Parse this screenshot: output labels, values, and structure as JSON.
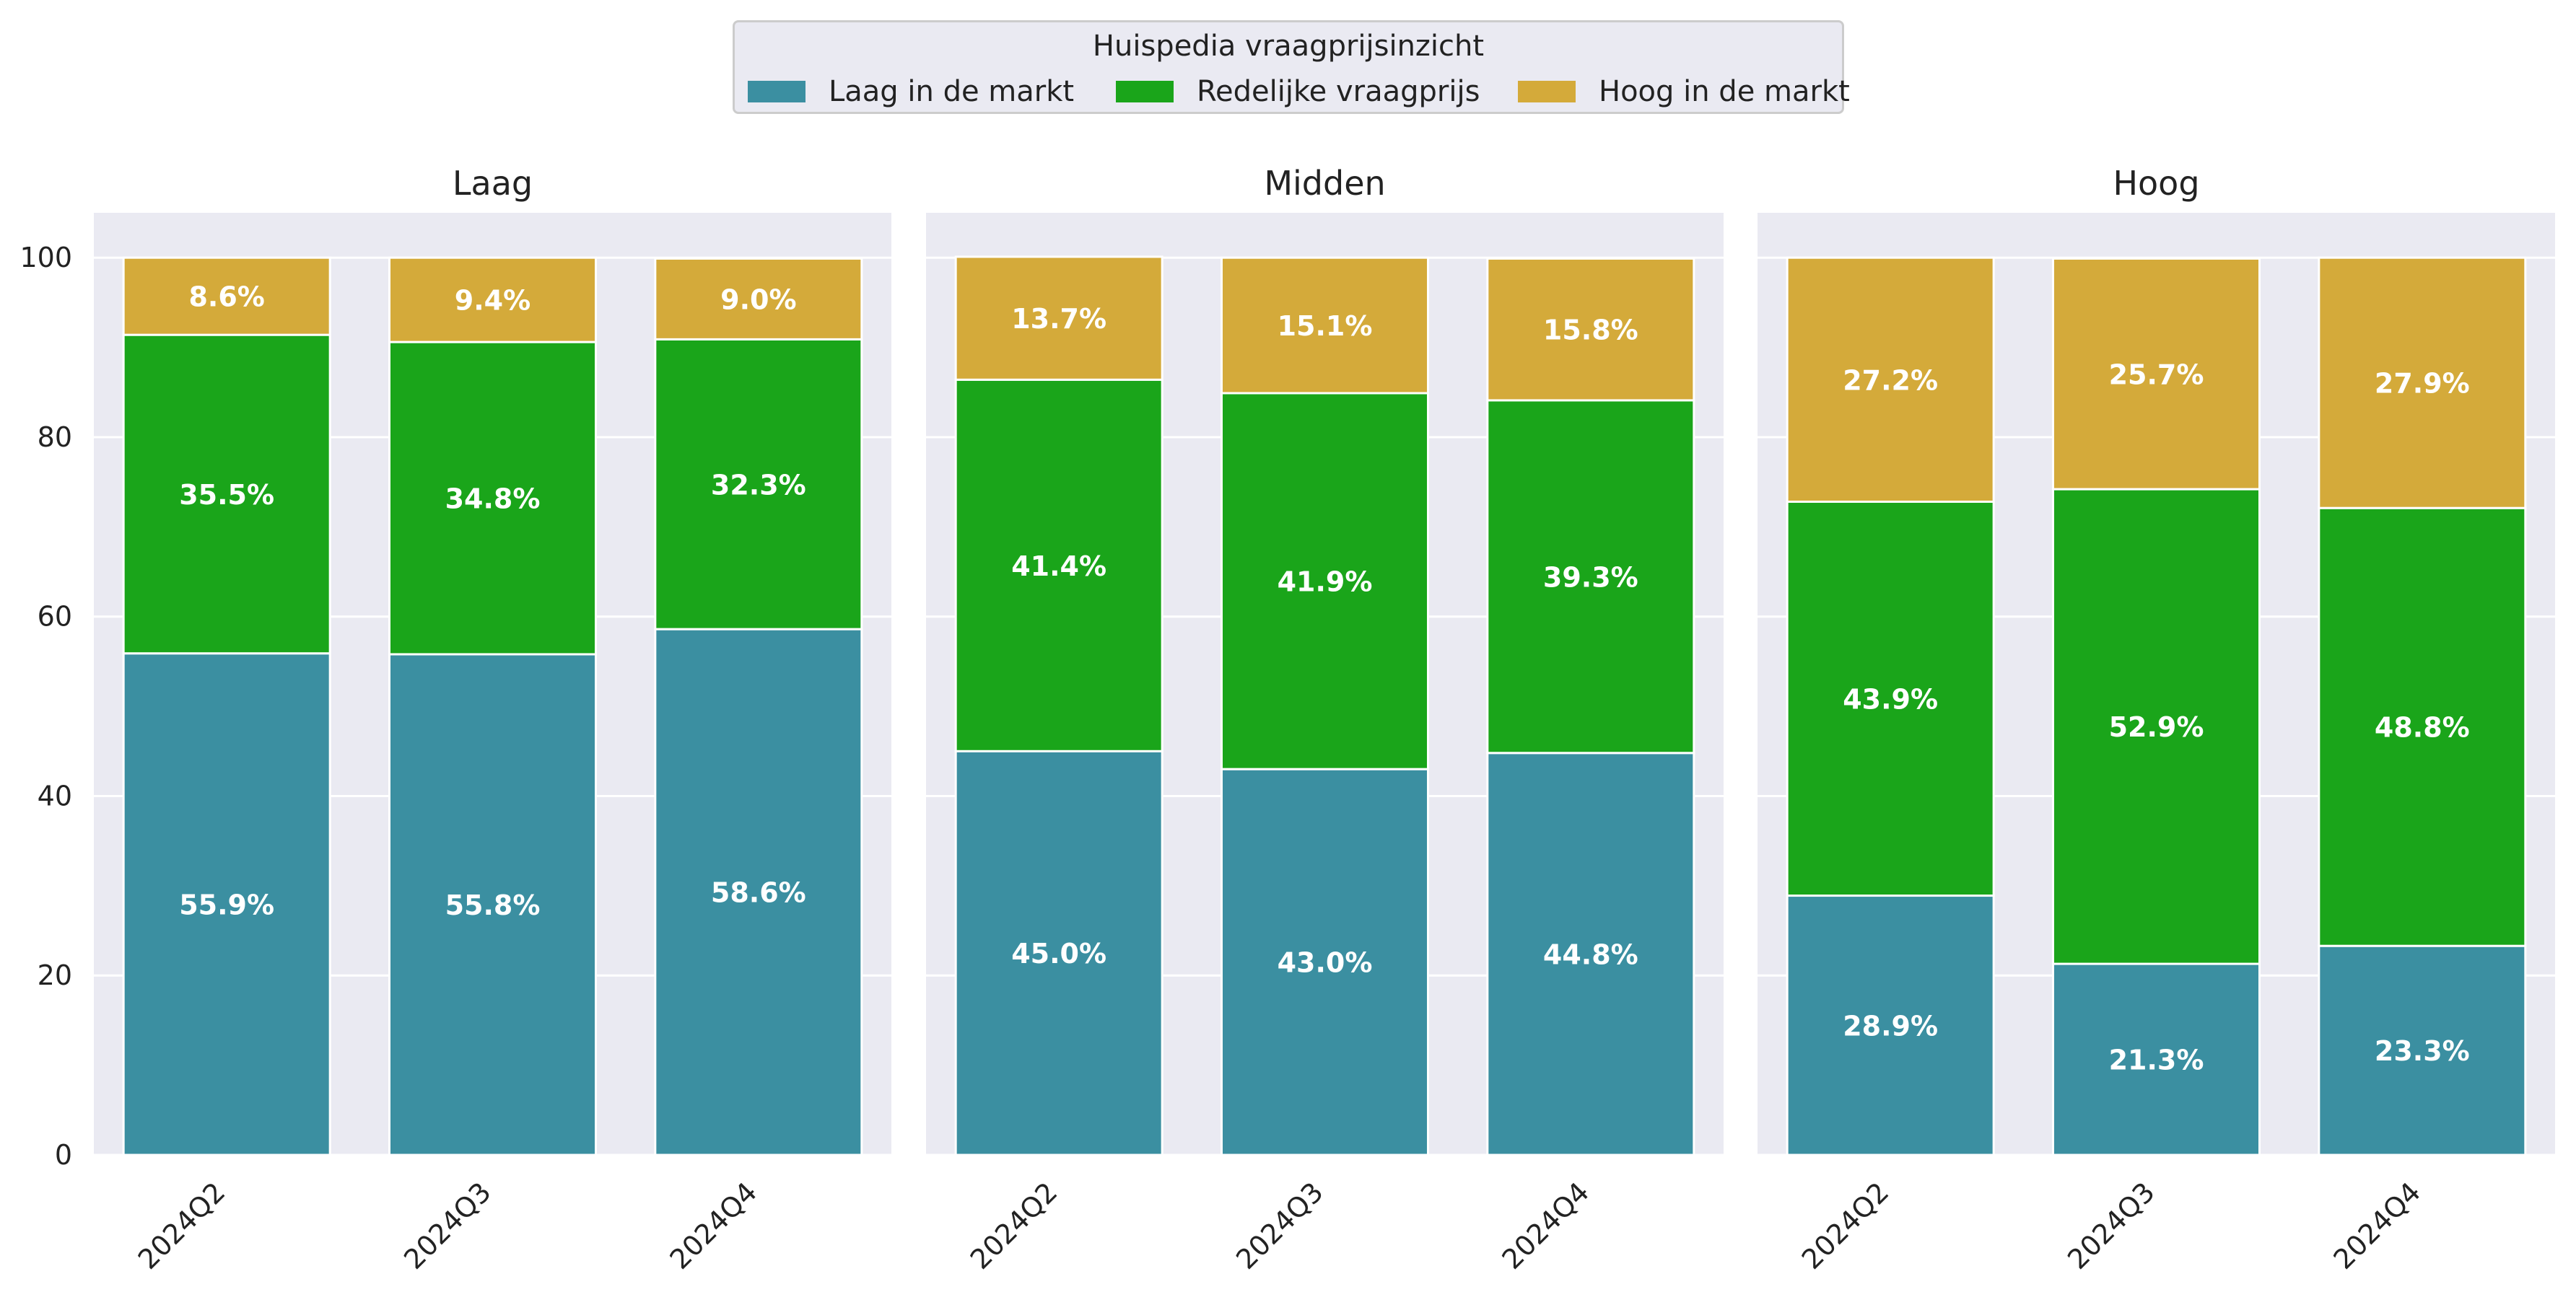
{
  "chart_data": {
    "type": "bar",
    "stacked": true,
    "legend": {
      "title": "Huispedia vraagprijsinzicht",
      "placement": "top-center",
      "entries": [
        "Laag in de markt",
        "Redelijke vraagprijs",
        "Hoog in de markt"
      ]
    },
    "colors": {
      "Laag in de markt": "#3b8fa1",
      "Redelijke vraagprijs": "#1aa51a",
      "Hoog in de markt": "#d4aa3a",
      "panel_background": "#eaeaf2",
      "grid": "#ffffff",
      "segment_label": "#ffffff"
    },
    "grid": true,
    "ylim": [
      0,
      105
    ],
    "yticks": [
      0,
      20,
      40,
      60,
      80,
      100
    ],
    "categories": [
      "2024Q2",
      "2024Q3",
      "2024Q4"
    ],
    "panels": [
      {
        "title": "Laag",
        "series": [
          {
            "name": "Laag in de markt",
            "values": [
              55.9,
              55.8,
              58.6
            ],
            "labels": [
              "55.9%",
              "55.8%",
              "58.6%"
            ]
          },
          {
            "name": "Redelijke vraagprijs",
            "values": [
              35.5,
              34.8,
              32.3
            ],
            "labels": [
              "35.5%",
              "34.8%",
              "32.3%"
            ]
          },
          {
            "name": "Hoog in de markt",
            "values": [
              8.6,
              9.4,
              9.0
            ],
            "labels": [
              "8.6%",
              "9.4%",
              "9.0%"
            ]
          }
        ]
      },
      {
        "title": "Midden",
        "series": [
          {
            "name": "Laag in de markt",
            "values": [
              45.0,
              43.0,
              44.8
            ],
            "labels": [
              "45.0%",
              "43.0%",
              "44.8%"
            ]
          },
          {
            "name": "Redelijke vraagprijs",
            "values": [
              41.4,
              41.9,
              39.3
            ],
            "labels": [
              "41.4%",
              "41.9%",
              "39.3%"
            ]
          },
          {
            "name": "Hoog in de markt",
            "values": [
              13.7,
              15.1,
              15.8
            ],
            "labels": [
              "13.7%",
              "15.1%",
              "15.8%"
            ]
          }
        ]
      },
      {
        "title": "Hoog",
        "series": [
          {
            "name": "Laag in de markt",
            "values": [
              28.9,
              21.3,
              23.3
            ],
            "labels": [
              "28.9%",
              "21.3%",
              "23.3%"
            ]
          },
          {
            "name": "Redelijke vraagprijs",
            "values": [
              43.9,
              52.9,
              48.8
            ],
            "labels": [
              "43.9%",
              "52.9%",
              "48.8%"
            ]
          },
          {
            "name": "Hoog in de markt",
            "values": [
              27.2,
              25.7,
              27.9
            ],
            "labels": [
              "27.2%",
              "25.7%",
              "27.9%"
            ]
          }
        ]
      }
    ]
  }
}
